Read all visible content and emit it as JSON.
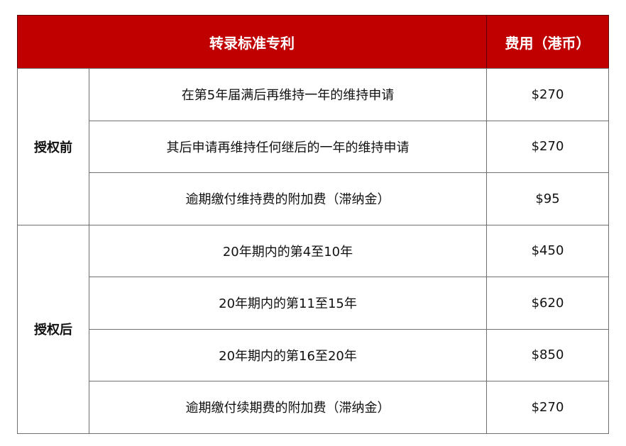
{
  "header": {
    "title": "转录标准专利",
    "fee": "费用（港币）"
  },
  "accent_color": "#c00000",
  "groups": [
    {
      "label": "授权前",
      "rows": [
        {
          "item": "在第5年届满后再维持一年的维持申请",
          "fee": "$270"
        },
        {
          "item": "其后申请再维持任何继后的一年的维持申请",
          "fee": "$270"
        },
        {
          "item": "逾期缴付维持费的附加费（滞纳金）",
          "fee": "$95"
        }
      ]
    },
    {
      "label": "授权后",
      "rows": [
        {
          "item": "20年期内的第4至10年",
          "fee": "$450"
        },
        {
          "item": "20年期内的第11至15年",
          "fee": "$620"
        },
        {
          "item": "20年期内的第16至20年",
          "fee": "$850"
        },
        {
          "item": "逾期缴付续期费的附加费（滞纳金）",
          "fee": "$270"
        }
      ]
    }
  ]
}
